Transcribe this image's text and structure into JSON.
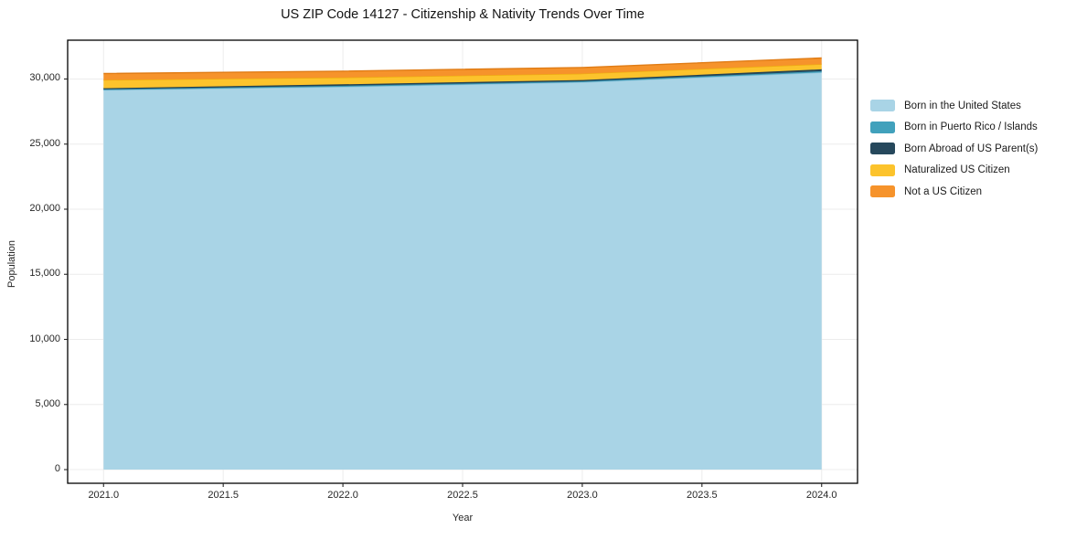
{
  "title": "US ZIP Code 14127 - Citizenship & Nativity Trends Over Time",
  "chart_data": {
    "type": "area",
    "stacked": true,
    "title": "US ZIP Code 14127 - Citizenship & Nativity Trends Over Time",
    "xlabel": "Year",
    "ylabel": "Population",
    "x": [
      2021,
      2022,
      2023,
      2024
    ],
    "xlim": [
      2020.85,
      2024.15
    ],
    "ylim": [
      -1050,
      32980
    ],
    "x_ticks": [
      {
        "value": 2021.0,
        "label": "2021.0"
      },
      {
        "value": 2021.5,
        "label": "2021.5"
      },
      {
        "value": 2022.0,
        "label": "2022.0"
      },
      {
        "value": 2022.5,
        "label": "2022.5"
      },
      {
        "value": 2023.0,
        "label": "2023.0"
      },
      {
        "value": 2023.5,
        "label": "2023.5"
      },
      {
        "value": 2024.0,
        "label": "2024.0"
      }
    ],
    "y_ticks": [
      {
        "value": 0,
        "label": "0"
      },
      {
        "value": 5000,
        "label": "5,000"
      },
      {
        "value": 10000,
        "label": "10,000"
      },
      {
        "value": 15000,
        "label": "15,000"
      },
      {
        "value": 20000,
        "label": "20,000"
      },
      {
        "value": 25000,
        "label": "25,000"
      },
      {
        "value": 30000,
        "label": "30,000"
      }
    ],
    "grid": true,
    "grid_color": "#ececec",
    "legend_position": "right",
    "series": [
      {
        "name": "Born in the United States",
        "color": "#A9D4E6",
        "edge": "#8FC3DA",
        "values": [
          29150,
          29400,
          29750,
          30500
        ]
      },
      {
        "name": "Born in Puerto Rico / Islands",
        "color": "#41A1BC",
        "edge": "#3892AD",
        "values": [
          60,
          80,
          70,
          100
        ]
      },
      {
        "name": "Born Abroad of US Parent(s)",
        "color": "#26485C",
        "edge": "#1E3C4E",
        "values": [
          80,
          110,
          100,
          140
        ]
      },
      {
        "name": "Naturalized US Citizen",
        "color": "#FCC32C",
        "edge": "#EEAD10",
        "values": [
          640,
          520,
          490,
          400
        ]
      },
      {
        "name": "Not a US Citizen",
        "color": "#F6932B",
        "edge": "#E07C15",
        "values": [
          490,
          490,
          470,
          470
        ]
      }
    ]
  }
}
